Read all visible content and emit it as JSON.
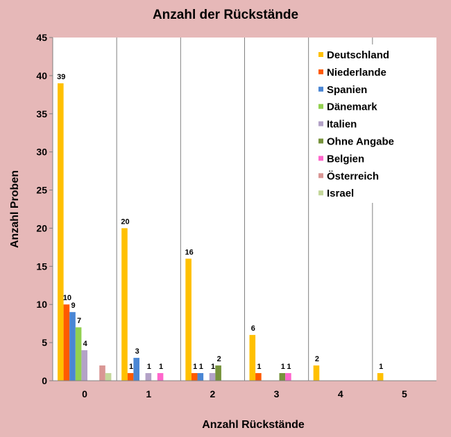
{
  "chart_data": {
    "type": "bar",
    "title": "Anzahl der Rückstände",
    "xlabel": "Anzahl Rückstände",
    "ylabel": "Anzahl Proben",
    "categories": [
      "0",
      "1",
      "2",
      "3",
      "4",
      "5"
    ],
    "ylim": [
      0,
      45
    ],
    "yticks": [
      "0",
      "5",
      "10",
      "15",
      "20",
      "25",
      "30",
      "35",
      "40",
      "45"
    ],
    "grid": "vertical separators between categories",
    "legend_position": "top-right",
    "series": [
      {
        "name": "Deutschland",
        "color": "#ffc000",
        "values": [
          39,
          20,
          16,
          6,
          2,
          1
        ]
      },
      {
        "name": "Niederlande",
        "color": "#ff5a00",
        "values": [
          10,
          1,
          1,
          1,
          null,
          null
        ]
      },
      {
        "name": "Spanien",
        "color": "#4a86d4",
        "values": [
          9,
          3,
          1,
          null,
          null,
          null
        ]
      },
      {
        "name": "Dänemark",
        "color": "#92d050",
        "values": [
          7,
          null,
          null,
          null,
          null,
          null
        ]
      },
      {
        "name": "Italien",
        "color": "#b3a2c7",
        "values": [
          4,
          1,
          1,
          null,
          null,
          null
        ]
      },
      {
        "name": "Ohne Angabe",
        "color": "#77933c",
        "values": [
          null,
          null,
          2,
          1,
          null,
          null
        ]
      },
      {
        "name": "Belgien",
        "color": "#ff66cc",
        "values": [
          null,
          1,
          null,
          1,
          null,
          null
        ]
      },
      {
        "name": "Österreich",
        "color": "#d99694",
        "values": [
          2,
          null,
          null,
          null,
          null,
          null
        ]
      },
      {
        "name": "Israel",
        "color": "#c4d79b",
        "values": [
          1,
          null,
          null,
          null,
          null,
          null
        ]
      }
    ],
    "data_labels": [
      [
        "39",
        "20",
        "16",
        "6",
        "2",
        "1"
      ],
      [
        "10",
        "1",
        "1",
        "1",
        "",
        ""
      ],
      [
        "9",
        "3",
        "1",
        "",
        "",
        ""
      ],
      [
        "7",
        "",
        "",
        "",
        "",
        ""
      ],
      [
        "4",
        "1",
        "1",
        "",
        "",
        ""
      ],
      [
        "",
        "",
        "2",
        "1",
        "",
        ""
      ],
      [
        "",
        "1",
        "",
        "1",
        "",
        ""
      ],
      [
        "",
        "",
        "",
        "",
        "",
        ""
      ],
      [
        "",
        "",
        "",
        "",
        "",
        ""
      ]
    ]
  }
}
